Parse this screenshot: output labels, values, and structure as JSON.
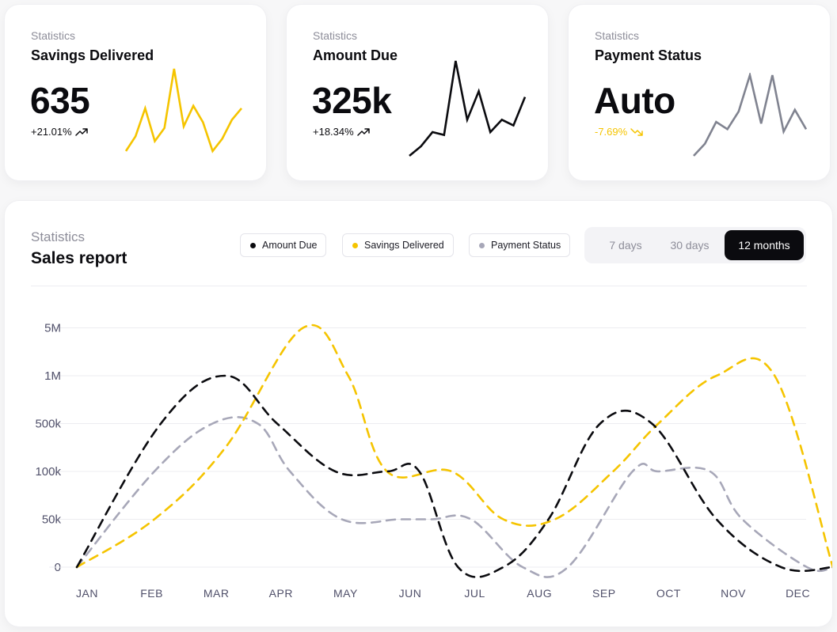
{
  "colors": {
    "black": "#0b0b0f",
    "yellow": "#f5c400",
    "gray": "#a7a7b8",
    "slate": "#808390"
  },
  "kpis": [
    {
      "eyebrow": "Statistics",
      "title": "Savings Delivered",
      "value": "635",
      "change": "+21.01%",
      "change_color": "#0b0b0f",
      "trend": "up",
      "spark_color": "#f5c400",
      "spark": [
        0,
        0.18,
        0.52,
        0.12,
        0.28,
        1.0,
        0.3,
        0.55,
        0.35,
        0,
        0.15,
        0.38,
        0.52
      ]
    },
    {
      "eyebrow": "Statistics",
      "title": "Amount Due",
      "value": "325k",
      "change": "+18.34%",
      "change_color": "#0b0b0f",
      "trend": "up",
      "spark_color": "#0b0b0f",
      "spark": [
        0,
        0.1,
        0.25,
        0.22,
        1.0,
        0.38,
        0.68,
        0.25,
        0.38,
        0.32,
        0.62
      ]
    },
    {
      "eyebrow": "Statistics",
      "title": "Payment Status",
      "value": "Auto",
      "change": "-7.69%",
      "change_color": "#f5c400",
      "trend": "down",
      "spark_color": "#808390",
      "spark": [
        0,
        0.15,
        0.42,
        0.33,
        0.55,
        1.0,
        0.4,
        1.0,
        0.3,
        0.57,
        0.33
      ]
    }
  ],
  "sales": {
    "eyebrow": "Statistics",
    "title": "Sales report",
    "legend": [
      {
        "label": "Amount Due",
        "color": "#0b0b0f"
      },
      {
        "label": "Savings Delivered",
        "color": "#f5c400"
      },
      {
        "label": "Payment Status",
        "color": "#a7a7b8"
      }
    ],
    "ranges": [
      "7 days",
      "30 days",
      "12 months"
    ],
    "active_range": "12 months"
  },
  "chart_data": {
    "type": "line",
    "title": "Sales report",
    "xlabel": "",
    "ylabel": "",
    "y_ticks": [
      "0",
      "50k",
      "100k",
      "500k",
      "1M",
      "5M"
    ],
    "categories": [
      "JAN",
      "FEB",
      "MAR",
      "APR",
      "MAY",
      "JUN",
      "JUL",
      "AUG",
      "SEP",
      "OCT",
      "NOV",
      "DEC"
    ],
    "grid": true,
    "line_style": "dashed",
    "series": [
      {
        "name": "Amount Due",
        "color": "#0b0b0f",
        "x": [
          0,
          1.3,
          2.3,
          3.1,
          4.0,
          4.8,
          5.3,
          5.9,
          6.6,
          7.3,
          8.1,
          8.9,
          9.9,
          10.9,
          11.7
        ],
        "y": [
          "0",
          "500k",
          "1M",
          "500k",
          "100k",
          "100k",
          "100k",
          "0",
          "0",
          "50k",
          "500k",
          "500k",
          "50k",
          "0",
          "0"
        ]
      },
      {
        "name": "Savings Delivered",
        "color": "#f5c400",
        "x": [
          0,
          1.2,
          2.3,
          3.5,
          4.2,
          4.8,
          5.8,
          6.6,
          7.4,
          8.3,
          9.0,
          9.9,
          10.8,
          11.7
        ],
        "y": [
          "0",
          "50k",
          "100k–500k",
          "5M",
          "1M",
          "100k",
          "100k",
          "50k",
          "50k",
          "100k",
          "500k",
          "1M",
          "1M",
          "0"
        ]
      },
      {
        "name": "Payment Status",
        "color": "#a7a7b8",
        "x": [
          0,
          1.2,
          2.1,
          2.8,
          3.3,
          4.1,
          5.0,
          5.5,
          6.1,
          6.9,
          7.6,
          8.6,
          9.0,
          9.8,
          10.3,
          11.3,
          11.7
        ],
        "y": [
          "0",
          "100k",
          "500k",
          "500k",
          "100k",
          "50k",
          "50k",
          "50k",
          "50k",
          "0",
          "0",
          "100k",
          "100k",
          "100k",
          "50k",
          "0",
          "0"
        ]
      }
    ]
  }
}
